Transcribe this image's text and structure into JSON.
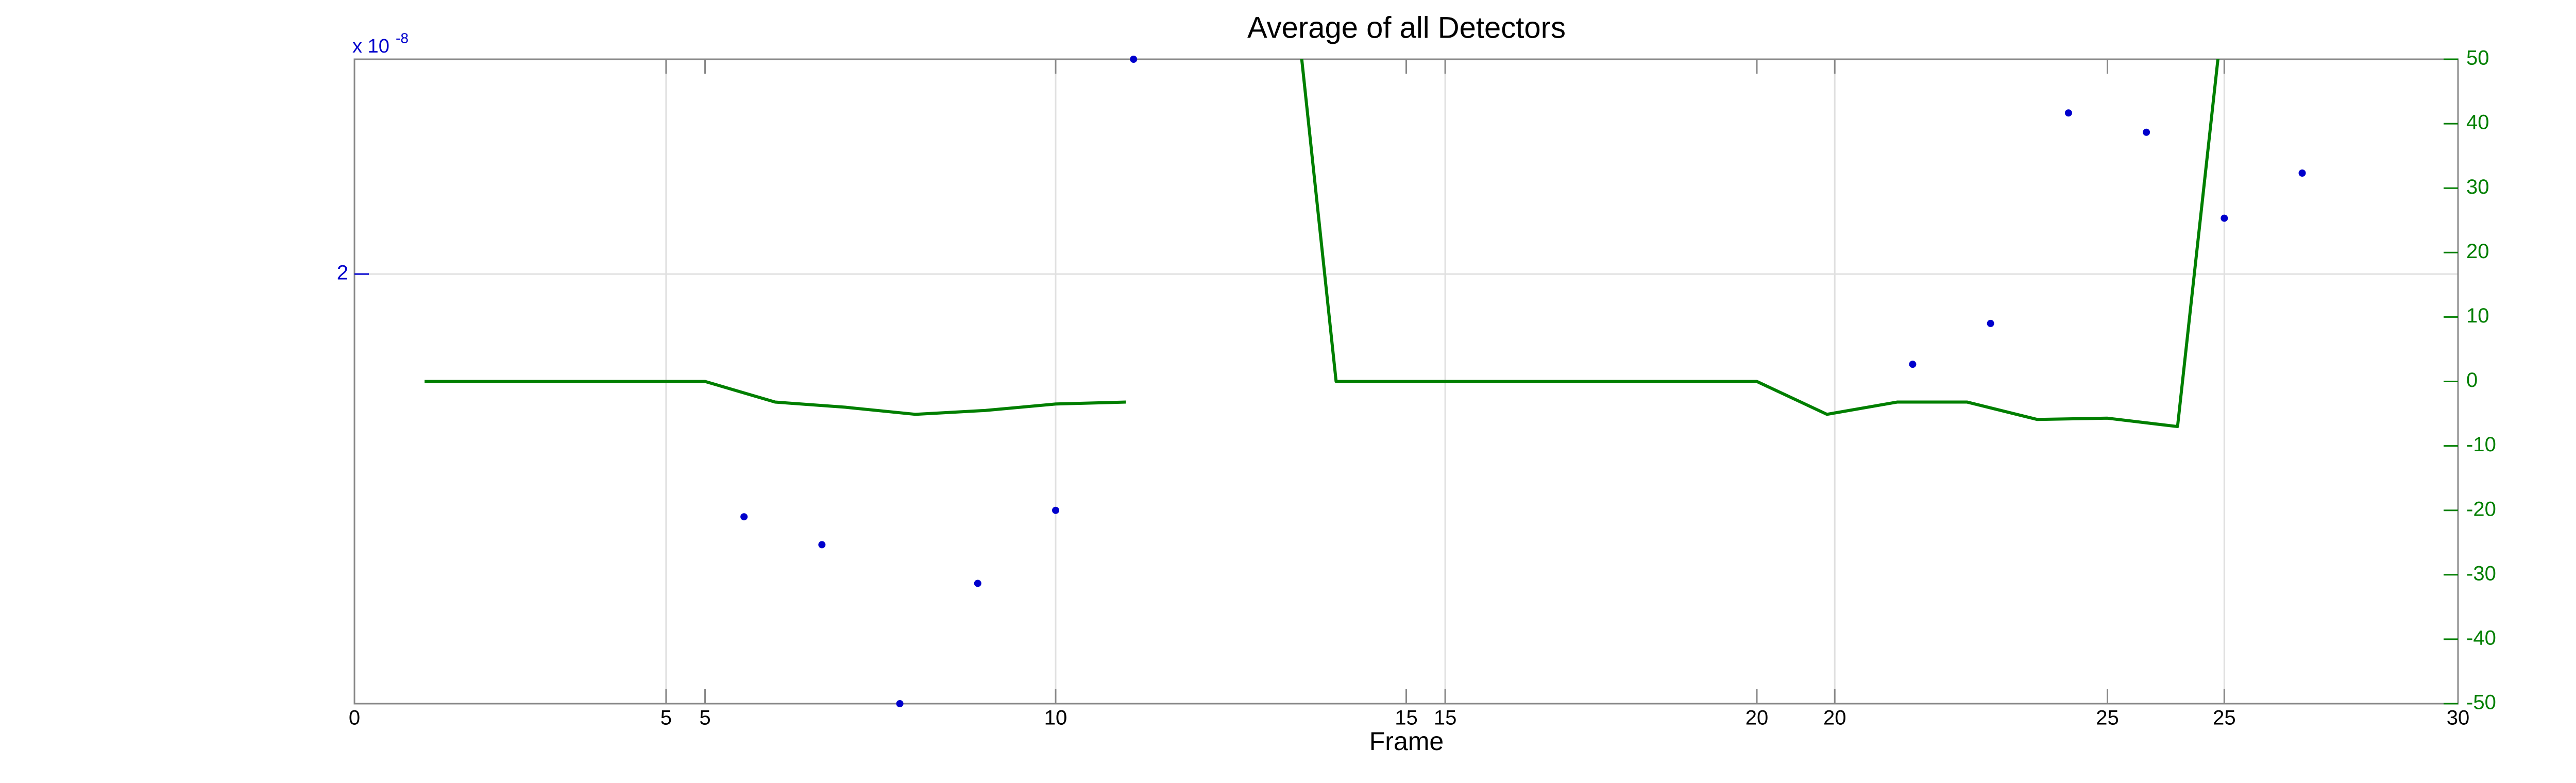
{
  "chart_data": {
    "type": "plotyy",
    "title": "Average of all Detectors",
    "xlabel": "Frame",
    "y_scale_label": "x 10",
    "y_scale_exponent": "-8",
    "xlim": [
      0,
      30
    ],
    "xticks": [
      0,
      5,
      10,
      15,
      20,
      25,
      30
    ],
    "x2lim": [
      1,
      28
    ],
    "x2ticks": [
      5,
      10,
      15,
      20,
      25
    ],
    "ylim": [
      1.8,
      2.1
    ],
    "yticks": [
      2
    ],
    "y2lim": [
      -50,
      50
    ],
    "y2ticks": [
      -50,
      -40,
      -30,
      -20,
      -10,
      0,
      10,
      20,
      30,
      40,
      50
    ],
    "grid": true,
    "y_color": "#0000cc",
    "y2_color": "#007f00",
    "series": [
      {
        "type": "scatter",
        "color": "#0000cc",
        "xaxis": "x2",
        "x": [
          6,
          7,
          8,
          9,
          10,
          11,
          21,
          22,
          23,
          24,
          25,
          26
        ],
        "values": [
          1.887,
          1.874,
          1.8,
          1.856,
          1.89,
          2.1,
          1.958,
          1.977,
          2.075,
          2.066,
          2.026,
          2.047
        ]
      },
      {
        "type": "line",
        "color": "#007f00",
        "axis": "y2",
        "x": [
          1,
          2,
          3,
          4,
          5,
          6,
          7,
          8,
          9,
          10,
          11,
          12,
          13,
          14,
          15,
          16,
          17,
          18,
          19,
          20,
          21,
          22,
          23,
          24,
          25,
          26,
          27
        ],
        "values": [
          0,
          0,
          0,
          0,
          0,
          -3.2,
          -4,
          -5.1,
          -4.5,
          -3.5,
          -3.2,
          null,
          102,
          0,
          0,
          0,
          0,
          0,
          0,
          0,
          -5.1,
          -3.2,
          -3.2,
          -5.9,
          -5.7,
          -7,
          92
        ]
      }
    ]
  }
}
